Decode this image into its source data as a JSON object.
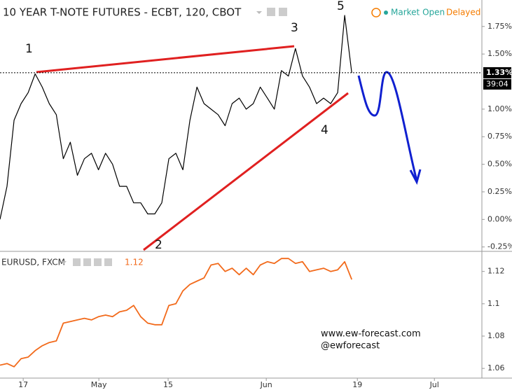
{
  "chart_data": [
    {
      "type": "line",
      "title": "10 YEAR T-NOTE FUTURES - ECBT, 120, CBOT",
      "status": "Market Open",
      "feed": "Delayed",
      "x": [
        0,
        2,
        4,
        6,
        8,
        10,
        12,
        14,
        16,
        18,
        20,
        22,
        24,
        26,
        28,
        30,
        32,
        34,
        36,
        38,
        40,
        42,
        44,
        46,
        48,
        50,
        52,
        54,
        56,
        58,
        60,
        62,
        64,
        66,
        68,
        70,
        72,
        74,
        76,
        78,
        80,
        82,
        84,
        86,
        88,
        90,
        92,
        94,
        96,
        98,
        100
      ],
      "series": [
        {
          "name": "10 YEAR T-NOTE FUTURES",
          "color": "#000000",
          "values": [
            0.0,
            0.3,
            0.9,
            1.05,
            1.15,
            1.32,
            1.2,
            1.05,
            0.95,
            0.55,
            0.7,
            0.4,
            0.55,
            0.6,
            0.45,
            0.6,
            0.5,
            0.3,
            0.3,
            0.15,
            0.15,
            0.05,
            0.05,
            0.15,
            0.55,
            0.6,
            0.45,
            0.9,
            1.2,
            1.05,
            1.0,
            0.95,
            0.85,
            1.05,
            1.1,
            1.0,
            1.05,
            1.2,
            1.1,
            1.0,
            1.35,
            1.3,
            1.55,
            1.3,
            1.2,
            1.05,
            1.1,
            1.05,
            1.15,
            1.85,
            1.33
          ]
        }
      ],
      "xlim": [
        0,
        137
      ],
      "ylim": [
        -0.29,
        1.99
      ],
      "yticks": [
        {
          "value": 1.75,
          "label": "1.75%"
        },
        {
          "value": 1.5,
          "label": "1.50%"
        },
        {
          "value": 1.0,
          "label": "1.00%"
        },
        {
          "value": 0.75,
          "label": "0.75%"
        },
        {
          "value": 0.5,
          "label": "0.50%"
        },
        {
          "value": 0.25,
          "label": "0.25%"
        },
        {
          "value": 0.0,
          "label": "0.00%"
        },
        {
          "value": -0.25,
          "label": "-0.25%"
        }
      ],
      "last_price": {
        "value": 1.33,
        "label": "1.33%"
      },
      "countdown": "39:04",
      "annotations": [
        "1",
        "2",
        "3",
        "4",
        "5"
      ],
      "grid": false
    },
    {
      "type": "line",
      "title": "EURUSD, FXCM",
      "last_label": "1.12",
      "x": [
        0,
        2,
        4,
        6,
        8,
        10,
        12,
        14,
        16,
        18,
        20,
        22,
        24,
        26,
        28,
        30,
        32,
        34,
        36,
        38,
        40,
        42,
        44,
        46,
        48,
        50,
        52,
        54,
        56,
        58,
        60,
        62,
        64,
        66,
        68,
        70,
        72,
        74,
        76,
        78,
        80,
        82,
        84,
        86,
        88,
        90,
        92,
        94,
        96,
        98,
        100
      ],
      "series": [
        {
          "name": "EURUSD",
          "color": "#f26a1b",
          "values": [
            1.062,
            1.063,
            1.061,
            1.066,
            1.067,
            1.071,
            1.074,
            1.076,
            1.077,
            1.088,
            1.089,
            1.09,
            1.091,
            1.09,
            1.092,
            1.093,
            1.092,
            1.095,
            1.096,
            1.099,
            1.092,
            1.088,
            1.087,
            1.087,
            1.099,
            1.1,
            1.108,
            1.112,
            1.114,
            1.116,
            1.124,
            1.125,
            1.12,
            1.122,
            1.118,
            1.122,
            1.118,
            1.124,
            1.126,
            1.125,
            1.128,
            1.128,
            1.125,
            1.126,
            1.12,
            1.121,
            1.122,
            1.12,
            1.121,
            1.126,
            1.115
          ]
        }
      ],
      "xlim": [
        0,
        137
      ],
      "xticks": [
        {
          "value": 6.6,
          "label": "17"
        },
        {
          "value": 28.1,
          "label": "May"
        },
        {
          "value": 47.8,
          "label": "15"
        },
        {
          "value": 75.7,
          "label": "Jun"
        },
        {
          "value": 101.6,
          "label": "19"
        },
        {
          "value": 123.5,
          "label": "Jul"
        }
      ],
      "ylim": [
        1.054,
        1.132
      ],
      "yticks": [
        1.12,
        1.1,
        1.08,
        1.06
      ],
      "grid": false
    }
  ],
  "watermark": {
    "site": "www.ew-forecast.com",
    "handle": "@ewforecast"
  }
}
